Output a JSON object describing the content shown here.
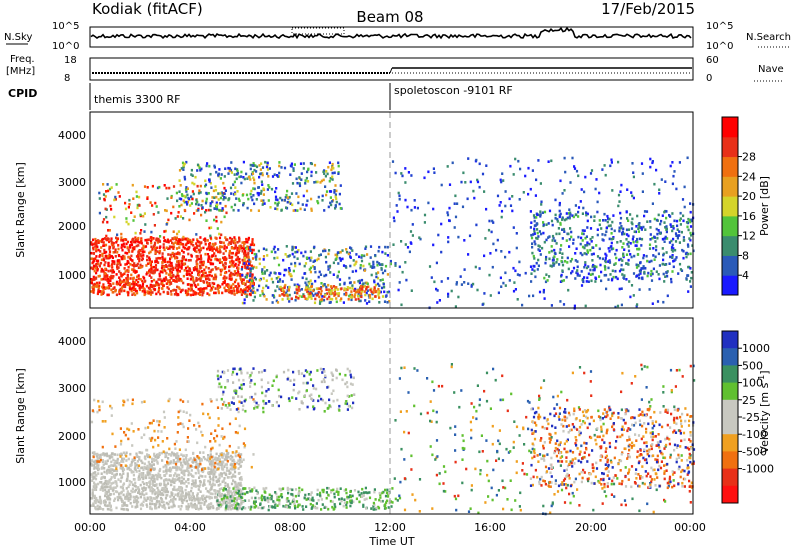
{
  "header": {
    "left": "Kodiak (fitACF)",
    "center": "Beam 08",
    "right": "17/Feb/2015"
  },
  "nsky_panel": {
    "left_label": "N.Sky",
    "right_label": "N.Search",
    "left_ticks": [
      "10^5",
      "10^0"
    ],
    "right_ticks": [
      "10^5",
      "10^0"
    ]
  },
  "freq_panel": {
    "left_label": "Freq.",
    "left_unit": "[MHz]",
    "right_label": "Nave",
    "left_ticks": [
      "18",
      "8"
    ],
    "right_ticks": [
      "60",
      "0"
    ]
  },
  "cpid_panel": {
    "label": "CPID",
    "segments": [
      "themis 3300 RF",
      "spoletoscon -9101 RF"
    ]
  },
  "axes": {
    "ylabel": "Slant Range [km]",
    "xlabel": "Time UT",
    "yticks": [
      "1000",
      "2000",
      "3000",
      "4000"
    ],
    "xticks": [
      "00:00",
      "04:00",
      "08:00",
      "12:00",
      "16:00",
      "20:00",
      "00:00"
    ]
  },
  "colorbars": {
    "power": {
      "label": "Power [dB]",
      "ticks": [
        "4",
        "8",
        "12",
        "16",
        "20",
        "24",
        "28"
      ],
      "colors": [
        "#1a1aff",
        "#2a5ab8",
        "#3a8c6e",
        "#52c43a",
        "#d4d42a",
        "#e8a020",
        "#f07010",
        "#e83018",
        "#ff0000"
      ]
    },
    "velocity": {
      "label_main": "Velocity",
      "label_unit": "[m s",
      "label_exp": "-1",
      "label_close": "]",
      "ticks": [
        "1000",
        "500",
        "100",
        "25",
        "-25",
        "-100",
        "-500",
        "-1000"
      ],
      "colors": [
        "#2030c0",
        "#2a60b0",
        "#3a9060",
        "#60c030",
        "#c8c8c0",
        "#c8c8c0",
        "#f0a020",
        "#f07010",
        "#e83018",
        "#ff1010"
      ]
    }
  },
  "chart_data": [
    {
      "type": "heatmap",
      "title": "Power",
      "xlabel": "Time UT",
      "ylabel": "Slant Range [km]",
      "xlim_hours": [
        0,
        24
      ],
      "ylim_km": [
        180,
        4600
      ],
      "colorbar_label": "Power [dB]",
      "colorbar_ticks": [
        4,
        8,
        12,
        16,
        20,
        24,
        28
      ]
    },
    {
      "type": "heatmap",
      "title": "Velocity",
      "xlabel": "Time UT",
      "ylabel": "Slant Range [km]",
      "xlim_hours": [
        0,
        24
      ],
      "ylim_km": [
        180,
        4600
      ],
      "colorbar_label": "Velocity [m s-1]",
      "colorbar_ticks": [
        1000,
        500,
        100,
        25,
        -25,
        -100,
        -500,
        -1000
      ]
    }
  ]
}
